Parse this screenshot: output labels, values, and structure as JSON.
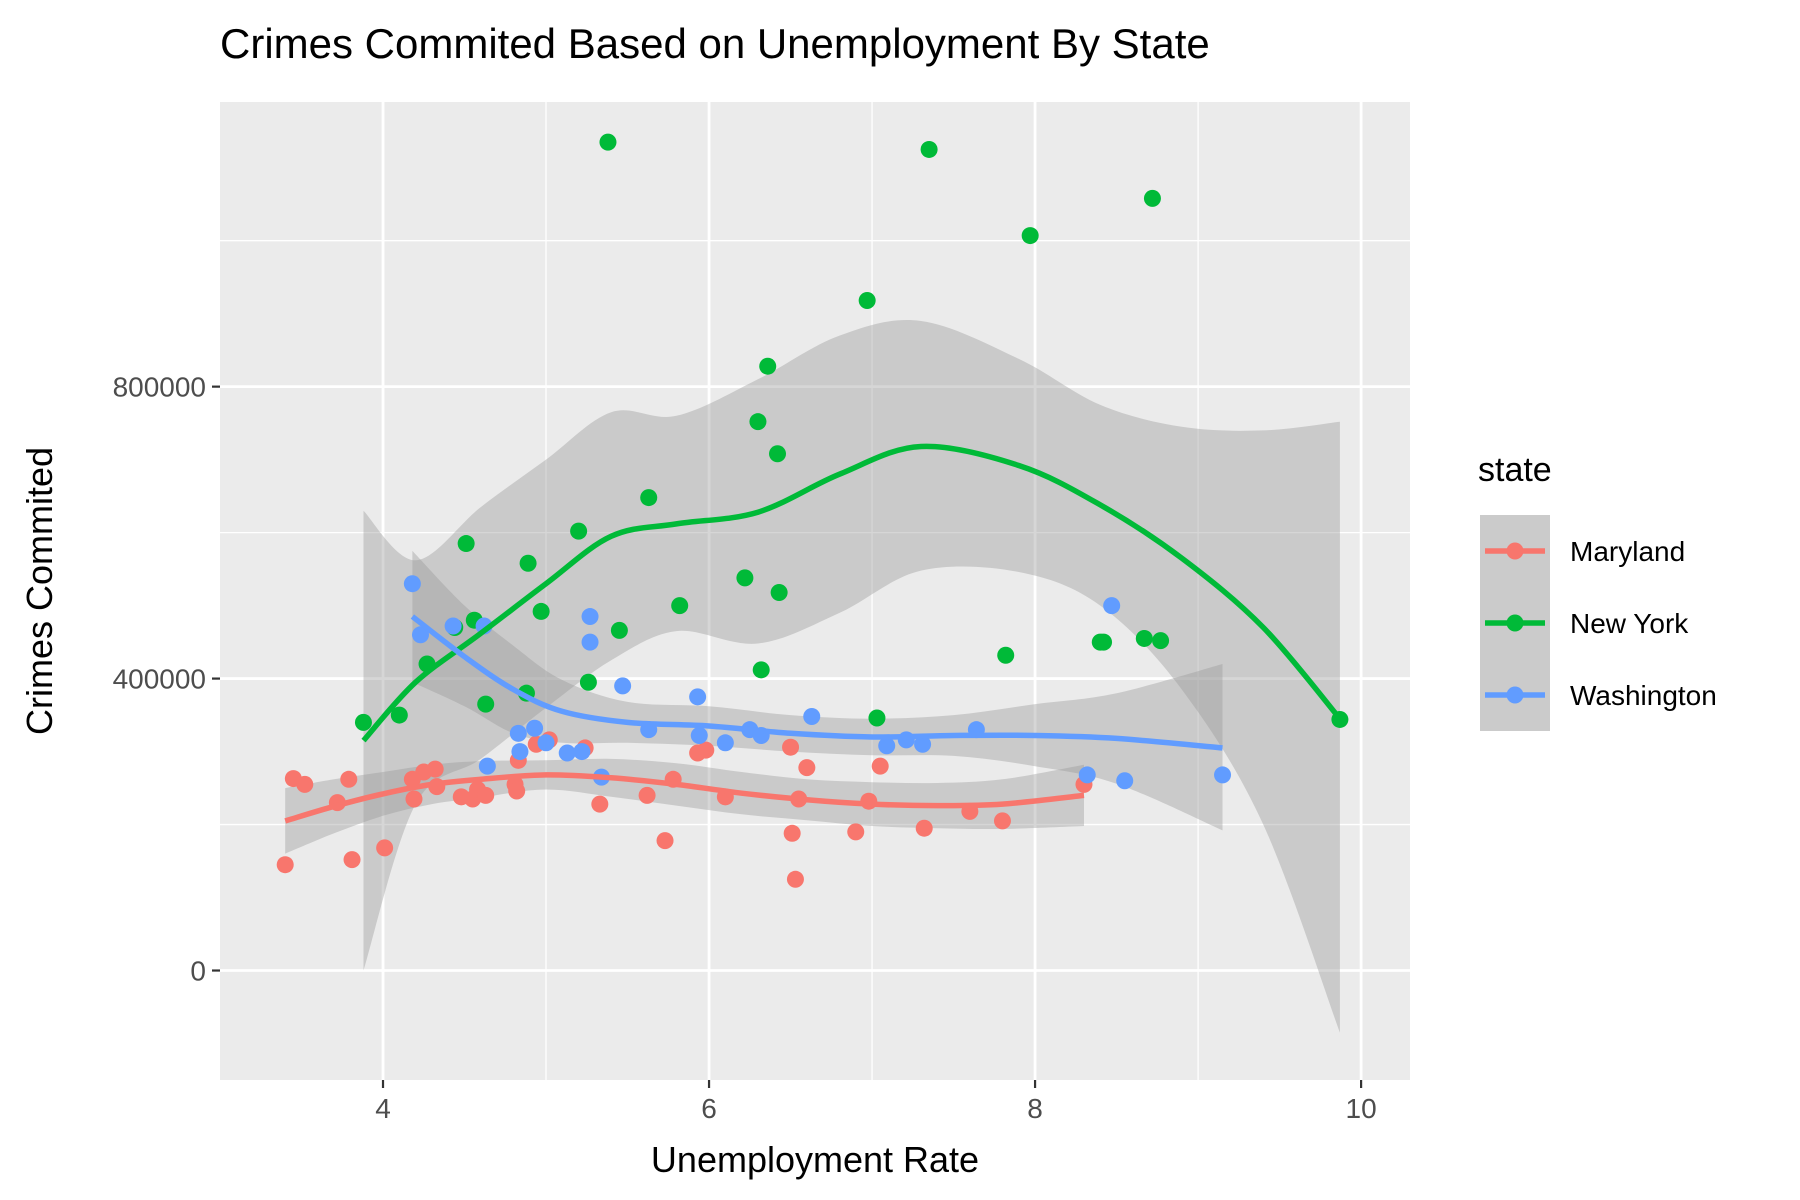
{
  "chart_data": {
    "type": "scatter",
    "title": "Crimes Commited Based on Unemployment By State",
    "xlabel": "Unemployment Rate",
    "ylabel": "Crimes Commited",
    "xlim": [
      3.0,
      10.3
    ],
    "ylim": [
      -150000,
      1190000
    ],
    "x_ticks": [
      4,
      6,
      8,
      10
    ],
    "y_ticks": [
      0,
      400000,
      800000
    ],
    "x_tick_labels": [
      "4",
      "6",
      "8",
      "10"
    ],
    "y_tick_labels": [
      "0",
      "400000",
      "800000"
    ],
    "grid": true,
    "legend": {
      "title": "state",
      "position": "right"
    },
    "series": [
      {
        "name": "Maryland",
        "color": "#F8766D",
        "points": [
          [
            3.4,
            145000
          ],
          [
            3.45,
            263000
          ],
          [
            3.52,
            255000
          ],
          [
            3.72,
            230000
          ],
          [
            3.79,
            262000
          ],
          [
            3.81,
            152000
          ],
          [
            4.01,
            168000
          ],
          [
            4.18,
            262000
          ],
          [
            4.19,
            235000
          ],
          [
            4.25,
            272000
          ],
          [
            4.32,
            276000
          ],
          [
            4.33,
            252000
          ],
          [
            4.48,
            238000
          ],
          [
            4.55,
            235000
          ],
          [
            4.58,
            248000
          ],
          [
            4.63,
            240000
          ],
          [
            4.81,
            255000
          ],
          [
            4.82,
            246000
          ],
          [
            4.83,
            288000
          ],
          [
            4.94,
            310000
          ],
          [
            5.02,
            316000
          ],
          [
            5.24,
            305000
          ],
          [
            5.33,
            228000
          ],
          [
            5.62,
            240000
          ],
          [
            5.73,
            178000
          ],
          [
            5.78,
            262000
          ],
          [
            5.93,
            298000
          ],
          [
            5.98,
            302000
          ],
          [
            6.1,
            238000
          ],
          [
            6.5,
            306000
          ],
          [
            6.51,
            188000
          ],
          [
            6.53,
            125000
          ],
          [
            6.55,
            235000
          ],
          [
            6.6,
            278000
          ],
          [
            6.9,
            190000
          ],
          [
            6.98,
            232000
          ],
          [
            7.05,
            280000
          ],
          [
            7.32,
            195000
          ],
          [
            7.6,
            218000
          ],
          [
            7.8,
            205000
          ],
          [
            8.3,
            255000
          ]
        ],
        "smooth": [
          [
            3.4,
            205000
          ],
          [
            3.7,
            225000
          ],
          [
            4.0,
            242000
          ],
          [
            4.3,
            255000
          ],
          [
            4.6,
            262000
          ],
          [
            5.0,
            268000
          ],
          [
            5.4,
            264000
          ],
          [
            5.8,
            255000
          ],
          [
            6.2,
            243000
          ],
          [
            6.6,
            234000
          ],
          [
            7.0,
            228000
          ],
          [
            7.4,
            226000
          ],
          [
            7.8,
            228000
          ],
          [
            8.3,
            240000
          ]
        ],
        "band_upper": [
          [
            3.4,
            250000
          ],
          [
            3.7,
            262000
          ],
          [
            4.0,
            272000
          ],
          [
            4.3,
            282000
          ],
          [
            4.6,
            287000
          ],
          [
            5.0,
            288000
          ],
          [
            5.4,
            290000
          ],
          [
            5.8,
            284000
          ],
          [
            6.2,
            272000
          ],
          [
            6.6,
            262000
          ],
          [
            7.0,
            258000
          ],
          [
            7.4,
            257000
          ],
          [
            7.8,
            262000
          ],
          [
            8.3,
            282000
          ]
        ],
        "band_lower": [
          [
            3.4,
            160000
          ],
          [
            3.7,
            188000
          ],
          [
            4.0,
            212000
          ],
          [
            4.3,
            228000
          ],
          [
            4.6,
            237000
          ],
          [
            5.0,
            248000
          ],
          [
            5.4,
            238000
          ],
          [
            5.8,
            226000
          ],
          [
            6.2,
            214000
          ],
          [
            6.6,
            206000
          ],
          [
            7.0,
            198000
          ],
          [
            7.4,
            195000
          ],
          [
            7.8,
            194000
          ],
          [
            8.3,
            198000
          ]
        ]
      },
      {
        "name": "New York",
        "color": "#00BA38",
        "points": [
          [
            3.88,
            340000
          ],
          [
            4.1,
            350000
          ],
          [
            4.27,
            420000
          ],
          [
            4.44,
            470000
          ],
          [
            4.51,
            585000
          ],
          [
            4.56,
            480000
          ],
          [
            4.63,
            365000
          ],
          [
            4.88,
            380000
          ],
          [
            4.89,
            558000
          ],
          [
            4.97,
            492000
          ],
          [
            5.2,
            602000
          ],
          [
            5.26,
            395000
          ],
          [
            5.38,
            1135000
          ],
          [
            5.45,
            466000
          ],
          [
            5.63,
            648000
          ],
          [
            5.82,
            500000
          ],
          [
            6.22,
            538000
          ],
          [
            6.3,
            752000
          ],
          [
            6.32,
            412000
          ],
          [
            6.36,
            828000
          ],
          [
            6.42,
            708000
          ],
          [
            6.43,
            518000
          ],
          [
            6.97,
            918000
          ],
          [
            7.03,
            346000
          ],
          [
            7.35,
            1125000
          ],
          [
            7.82,
            432000
          ],
          [
            7.97,
            1007000
          ],
          [
            8.4,
            450000
          ],
          [
            8.42,
            450000
          ],
          [
            8.67,
            455000
          ],
          [
            8.72,
            1058000
          ],
          [
            8.77,
            452000
          ],
          [
            9.87,
            344000
          ]
        ],
        "smooth": [
          [
            3.88,
            315000
          ],
          [
            4.2,
            395000
          ],
          [
            4.6,
            462000
          ],
          [
            5.0,
            530000
          ],
          [
            5.4,
            595000
          ],
          [
            5.8,
            612000
          ],
          [
            6.3,
            628000
          ],
          [
            6.8,
            680000
          ],
          [
            7.3,
            718000
          ],
          [
            7.9,
            692000
          ],
          [
            8.4,
            638000
          ],
          [
            8.9,
            565000
          ],
          [
            9.4,
            470000
          ],
          [
            9.87,
            345000
          ]
        ],
        "band_upper": [
          [
            3.88,
            630000
          ],
          [
            4.2,
            562000
          ],
          [
            4.6,
            635000
          ],
          [
            5.0,
            700000
          ],
          [
            5.4,
            765000
          ],
          [
            5.8,
            760000
          ],
          [
            6.3,
            810000
          ],
          [
            6.8,
            870000
          ],
          [
            7.3,
            890000
          ],
          [
            7.9,
            838000
          ],
          [
            8.4,
            775000
          ],
          [
            8.9,
            745000
          ],
          [
            9.4,
            740000
          ],
          [
            9.87,
            752000
          ]
        ],
        "band_lower": [
          [
            3.88,
            0
          ],
          [
            4.2,
            228000
          ],
          [
            4.6,
            290000
          ],
          [
            5.0,
            360000
          ],
          [
            5.4,
            425000
          ],
          [
            5.8,
            465000
          ],
          [
            6.3,
            448000
          ],
          [
            6.8,
            490000
          ],
          [
            7.3,
            548000
          ],
          [
            7.9,
            546000
          ],
          [
            8.4,
            500000
          ],
          [
            8.9,
            385000
          ],
          [
            9.4,
            200000
          ],
          [
            9.87,
            -85000
          ]
        ]
      },
      {
        "name": "Washington",
        "color": "#619CFF",
        "points": [
          [
            4.18,
            530000
          ],
          [
            4.23,
            460000
          ],
          [
            4.43,
            472000
          ],
          [
            4.62,
            472000
          ],
          [
            4.64,
            280000
          ],
          [
            4.83,
            325000
          ],
          [
            4.84,
            300000
          ],
          [
            4.93,
            332000
          ],
          [
            5.0,
            312000
          ],
          [
            5.13,
            298000
          ],
          [
            5.22,
            300000
          ],
          [
            5.27,
            485000
          ],
          [
            5.27,
            450000
          ],
          [
            5.34,
            265000
          ],
          [
            5.47,
            390000
          ],
          [
            5.63,
            330000
          ],
          [
            5.93,
            375000
          ],
          [
            5.94,
            322000
          ],
          [
            6.1,
            312000
          ],
          [
            6.25,
            330000
          ],
          [
            6.32,
            322000
          ],
          [
            6.63,
            348000
          ],
          [
            7.09,
            308000
          ],
          [
            7.21,
            316000
          ],
          [
            7.31,
            310000
          ],
          [
            7.64,
            330000
          ],
          [
            8.32,
            268000
          ],
          [
            8.47,
            500000
          ],
          [
            8.55,
            260000
          ],
          [
            9.15,
            268000
          ]
        ],
        "smooth": [
          [
            4.18,
            485000
          ],
          [
            4.5,
            430000
          ],
          [
            4.8,
            385000
          ],
          [
            5.1,
            355000
          ],
          [
            5.5,
            340000
          ],
          [
            6.0,
            335000
          ],
          [
            6.5,
            325000
          ],
          [
            7.0,
            320000
          ],
          [
            7.5,
            322000
          ],
          [
            8.0,
            322000
          ],
          [
            8.5,
            318000
          ],
          [
            9.15,
            305000
          ]
        ],
        "band_upper": [
          [
            4.18,
            575000
          ],
          [
            4.5,
            500000
          ],
          [
            4.8,
            445000
          ],
          [
            5.1,
            398000
          ],
          [
            5.5,
            368000
          ],
          [
            6.0,
            362000
          ],
          [
            6.5,
            350000
          ],
          [
            7.0,
            345000
          ],
          [
            7.5,
            350000
          ],
          [
            8.0,
            365000
          ],
          [
            8.5,
            380000
          ],
          [
            9.15,
            420000
          ]
        ],
        "band_lower": [
          [
            4.18,
            395000
          ],
          [
            4.5,
            362000
          ],
          [
            4.8,
            325000
          ],
          [
            5.1,
            312000
          ],
          [
            5.5,
            312000
          ],
          [
            6.0,
            308000
          ],
          [
            6.5,
            300000
          ],
          [
            7.0,
            295000
          ],
          [
            7.5,
            294000
          ],
          [
            8.0,
            280000
          ],
          [
            8.5,
            256000
          ],
          [
            9.15,
            192000
          ]
        ]
      }
    ]
  }
}
